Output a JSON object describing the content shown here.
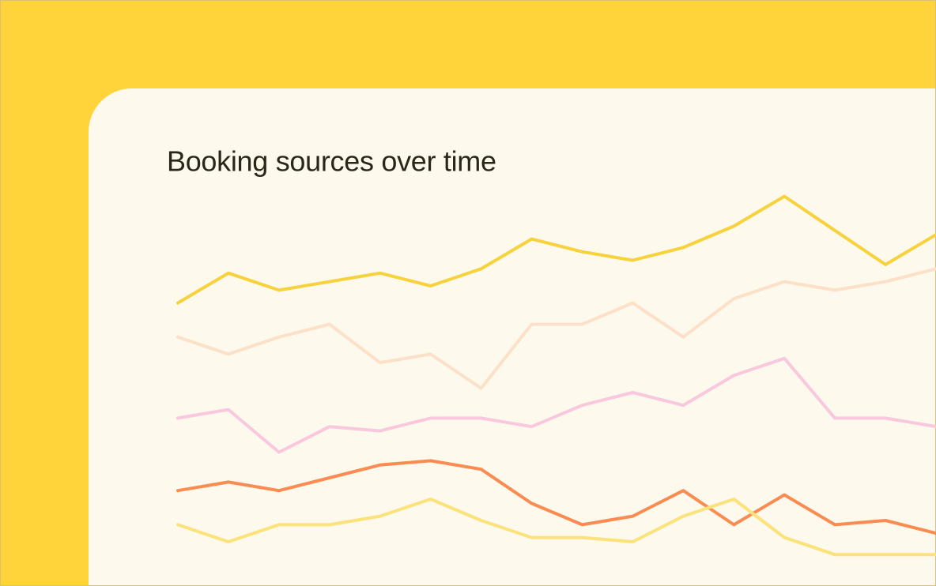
{
  "chart_data": {
    "type": "line",
    "title": "Booking sources over time",
    "categories": [
      null,
      null,
      null,
      null,
      null,
      null,
      null,
      null,
      null,
      null,
      null,
      null,
      null,
      null,
      null,
      null
    ],
    "ylim": [
      0,
      100
    ],
    "series": [
      {
        "color": "#f8d23c",
        "values": [
          66,
          73,
          69,
          71,
          73,
          70,
          74,
          81,
          78,
          76,
          79,
          84,
          91,
          83,
          75,
          82
        ]
      },
      {
        "color": "#fde0c8",
        "values": [
          58,
          54,
          58,
          61,
          52,
          54,
          46,
          61,
          61,
          66,
          58,
          67,
          71,
          69,
          71,
          74
        ]
      },
      {
        "color": "#f9c8de",
        "values": [
          39,
          41,
          31,
          37,
          36,
          39,
          39,
          37,
          42,
          45,
          42,
          49,
          53,
          39,
          39,
          37
        ]
      },
      {
        "color": "#fa8c52",
        "values": [
          22,
          24,
          22,
          25,
          28,
          29,
          27,
          19,
          14,
          16,
          22,
          14,
          21,
          14,
          15,
          12
        ]
      },
      {
        "color": "#fbe27a",
        "values": [
          14,
          10,
          14,
          14,
          16,
          20,
          15,
          11,
          11,
          10,
          16,
          20,
          11,
          7,
          7,
          7
        ]
      }
    ]
  }
}
